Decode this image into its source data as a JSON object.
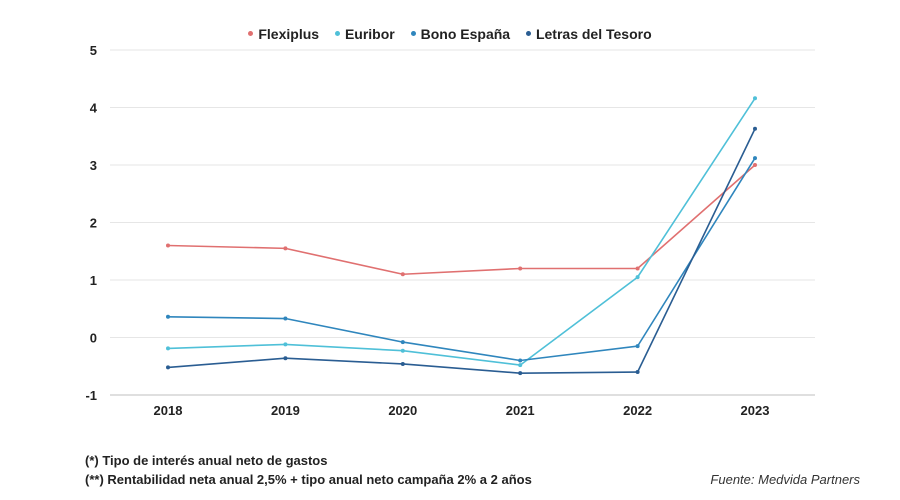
{
  "chart_data": {
    "type": "line",
    "categories": [
      "2018",
      "2019",
      "2020",
      "2021",
      "2022",
      "2023"
    ],
    "ylim": [
      -1,
      5
    ],
    "yticks": [
      -1,
      0,
      1,
      2,
      3,
      4,
      5
    ],
    "grid": true,
    "legend_position": "top",
    "series": [
      {
        "name": "Flexiplus",
        "color": "#e07070",
        "values": [
          1.6,
          1.55,
          1.1,
          1.2,
          1.2,
          3.0
        ]
      },
      {
        "name": "Euribor",
        "color": "#4fc0d8",
        "values": [
          -0.19,
          -0.12,
          -0.23,
          -0.48,
          1.05,
          4.16
        ]
      },
      {
        "name": "Bono España",
        "color": "#2f86bd",
        "values": [
          0.36,
          0.33,
          -0.08,
          -0.4,
          -0.15,
          3.12
        ]
      },
      {
        "name": "Letras del Tesoro",
        "color": "#2a5d92",
        "values": [
          -0.52,
          -0.36,
          -0.46,
          -0.62,
          -0.6,
          3.63
        ]
      }
    ]
  },
  "notes": {
    "note1": "(*) Tipo de interés anual neto de gastos",
    "note2": "(**) Rentabilidad neta anual 2,5% + tipo anual neto campaña 2% a 2 años",
    "source": "Fuente: Medvida Partners"
  }
}
